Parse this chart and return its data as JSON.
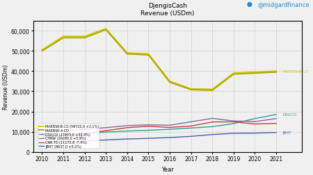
{
  "title": "DjengisCash\nRevenue (USDm)",
  "xlabel": "Year",
  "ylabel": "Revenue (USDm)",
  "twitter": "@midgardfinance",
  "years": [
    2010,
    2011,
    2012,
    2013,
    2014,
    2015,
    2016,
    2017,
    2018,
    2019,
    2020,
    2021
  ],
  "series": [
    {
      "name": "MAERSK-B.CO (59722.0 +2.1%)",
      "color": "#cccc00",
      "linewidth": 1.4,
      "values": [
        50500,
        57200,
        57200,
        61000,
        49000,
        48500,
        35000,
        31200,
        31000,
        39000,
        39500,
        40000
      ]
    },
    {
      "name": "MAERSK A.CO",
      "color": "#aaaa00",
      "linewidth": 1.4,
      "values": [
        50000,
        56500,
        56500,
        60500,
        48500,
        48000,
        34500,
        30800,
        30500,
        38500,
        39000,
        39500
      ]
    },
    {
      "name": "DSV.CO (17973.0 +32.4%)",
      "color": "#2e9e8a",
      "linewidth": 1.0,
      "values": [
        8000,
        8500,
        9200,
        9800,
        10300,
        10700,
        11200,
        11800,
        12500,
        14000,
        16500,
        18500
      ]
    },
    {
      "name": "CHRW (16280.0 +5.9%)",
      "color": "#9060a0",
      "linewidth": 1.0,
      "values": [
        9500,
        10500,
        11200,
        12000,
        13000,
        13400,
        13200,
        14900,
        16600,
        15300,
        15000,
        16500
      ]
    },
    {
      "name": "CNR.TO (11175.6 -7.4%)",
      "color": "#c04030",
      "linewidth": 1.0,
      "values": [
        7200,
        8100,
        9000,
        10500,
        12000,
        12700,
        12100,
        12800,
        14800,
        14900,
        13800,
        14100
      ]
    },
    {
      "name": "JBHT (9637.0 +5.2%)",
      "color": "#4060a8",
      "linewidth": 1.0,
      "values": [
        4400,
        4900,
        5400,
        5900,
        6400,
        6700,
        7100,
        7700,
        8600,
        9200,
        9300,
        9600
      ]
    }
  ],
  "ylim": [
    0,
    65000
  ],
  "yticks": [
    0,
    10000,
    20000,
    30000,
    40000,
    50000,
    60000
  ],
  "xlim": [
    2009.6,
    2022.2
  ],
  "background_color": "#f0f0f0",
  "grid_color": "#d0d0d0",
  "end_labels": [
    {
      "text": "MAERSK-B.CO",
      "y": 40000,
      "color": "#cccc00"
    },
    {
      "text": "DSV.CO",
      "y": 18500,
      "color": "#2e9e8a"
    },
    {
      "text": "JBHT",
      "y": 9600,
      "color": "#4060a8"
    }
  ]
}
